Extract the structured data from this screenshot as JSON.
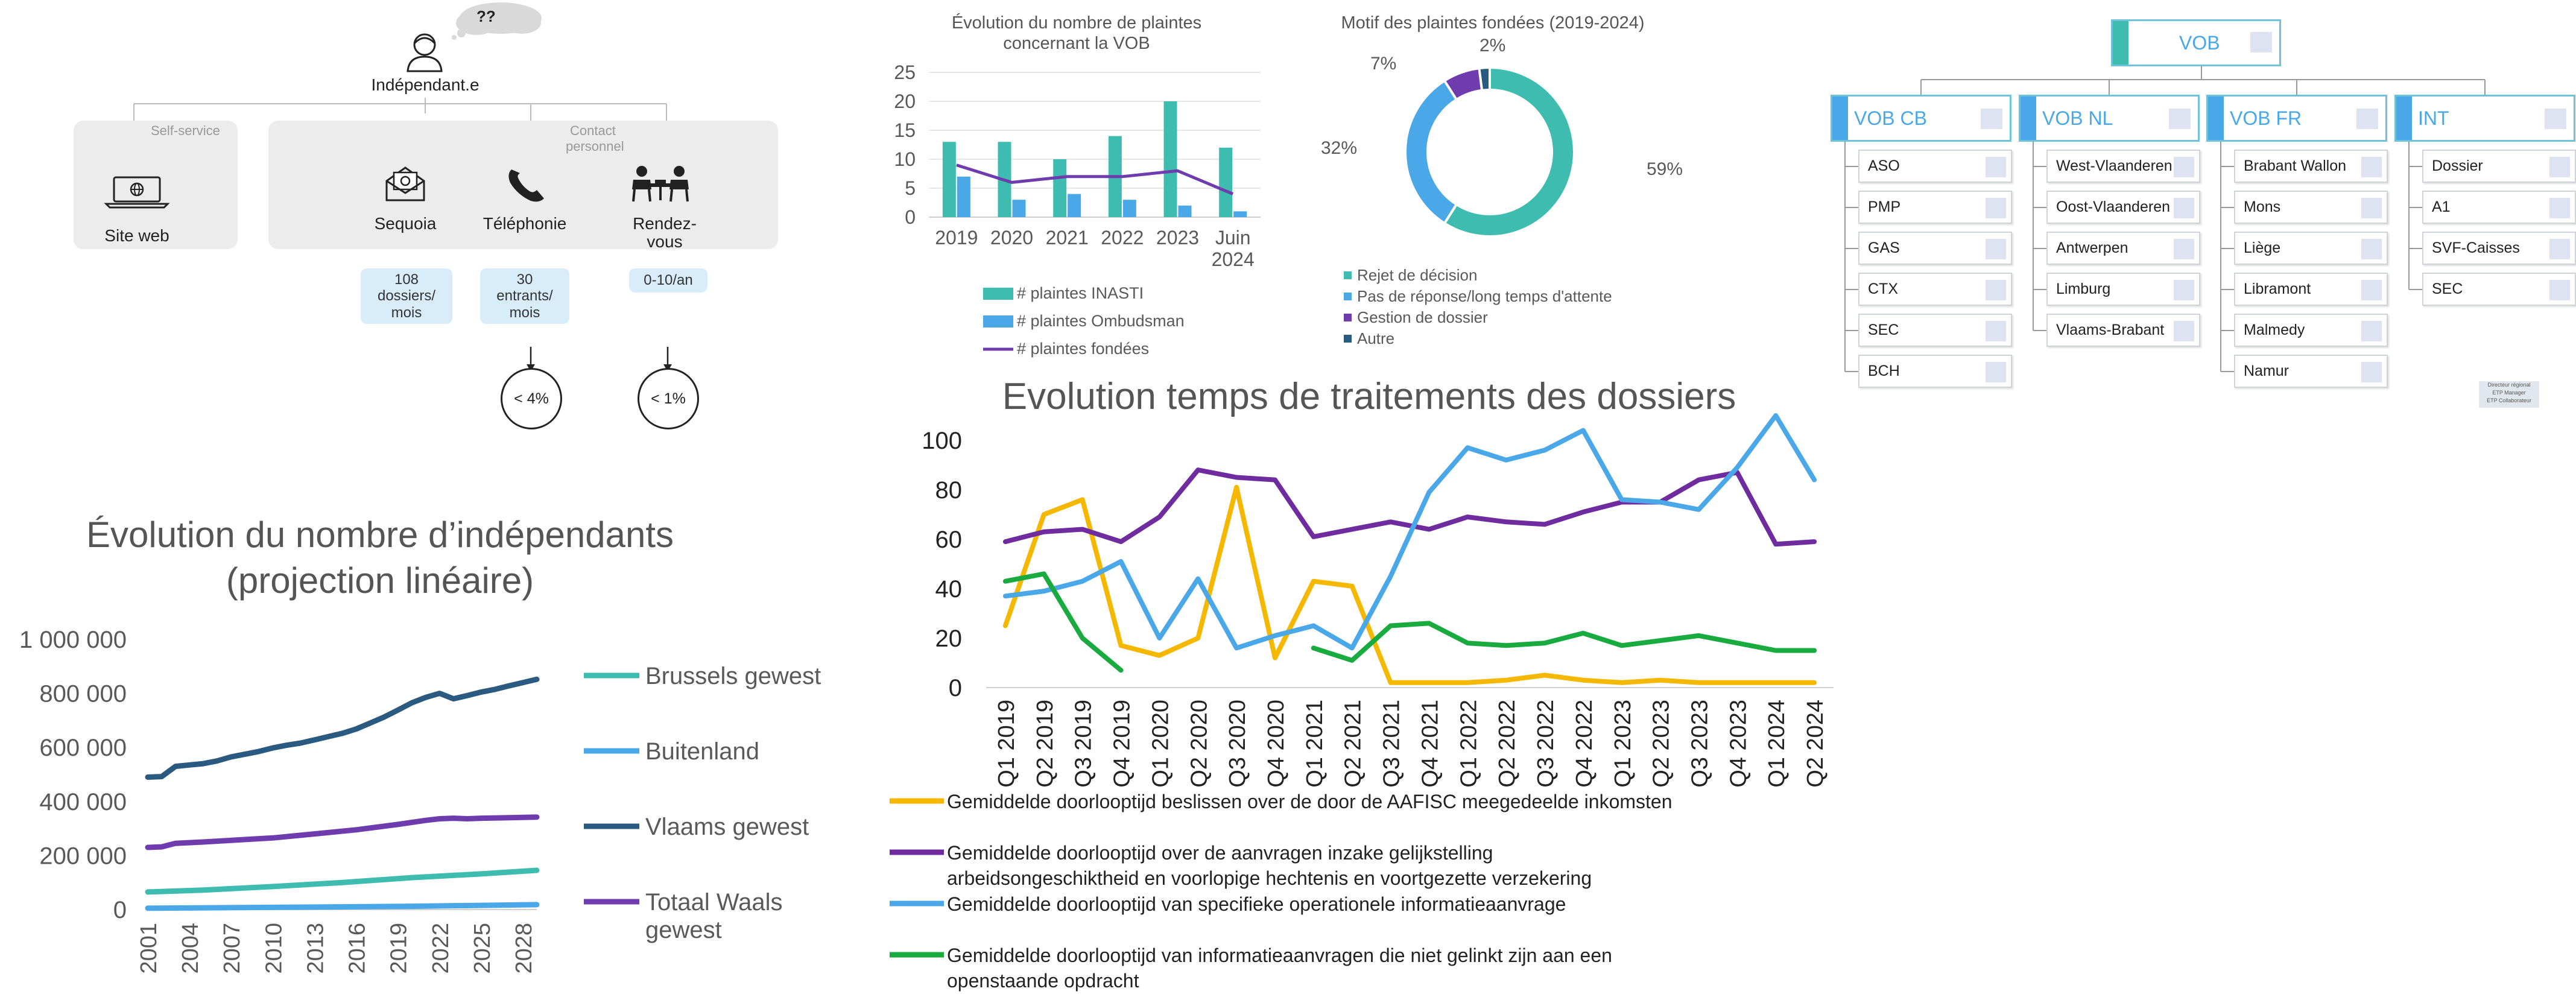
{
  "flow": {
    "bubble": "??",
    "user_label": "Indépendant.e",
    "self_service_label": "Self-service",
    "contact_label_1": "Contact",
    "contact_label_2": "personnel",
    "channels": [
      {
        "label": "Site web",
        "icon": "laptop-icon"
      },
      {
        "label": "Sequoia",
        "icon": "mail-icon"
      },
      {
        "label": "Téléphonie",
        "icon": "phone-icon"
      },
      {
        "label_1": "Rendez-",
        "label_2": "vous",
        "icon": "meeting-icon"
      }
    ],
    "volumes": [
      {
        "l1": "108",
        "l2": "dossiers/",
        "l3": "mois"
      },
      {
        "l1": "30",
        "l2": "entrants/",
        "l3": "mois"
      },
      {
        "l1": "0-10/an"
      }
    ],
    "rates": [
      "< 4%",
      "< 1%"
    ]
  },
  "chart_data": [
    {
      "type": "line",
      "title": "Évolution du nombre d’indépendants",
      "subtitle": "(projection linéaire)",
      "x": [
        "2001",
        "2004",
        "2007",
        "2010",
        "2013",
        "2016",
        "2019",
        "2022",
        "2025",
        "2028"
      ],
      "x_start": 2001,
      "x_end": 2029,
      "ylim": [
        0,
        1000000
      ],
      "yticks": [
        "0",
        "200 000",
        "400 000",
        "600 000",
        "800 000",
        "1 000 000"
      ],
      "series": [
        {
          "name": "Brussels gewest",
          "color": "#3ebcb0",
          "points": [
            [
              2001,
              65000
            ],
            [
              2005,
              72000
            ],
            [
              2010,
              85000
            ],
            [
              2015,
              100000
            ],
            [
              2020,
              118000
            ],
            [
              2025,
              132000
            ],
            [
              2029,
              145000
            ]
          ]
        },
        {
          "name": "Buitenland",
          "color": "#4aa8e8",
          "points": [
            [
              2001,
              5000
            ],
            [
              2010,
              8000
            ],
            [
              2020,
              12000
            ],
            [
              2029,
              18000
            ]
          ]
        },
        {
          "name": "Vlaams gewest",
          "color": "#2a5a80",
          "points": [
            [
              2001,
              490000
            ],
            [
              2002,
              492000
            ],
            [
              2003,
              530000
            ],
            [
              2004,
              535000
            ],
            [
              2005,
              540000
            ],
            [
              2006,
              550000
            ],
            [
              2007,
              565000
            ],
            [
              2008,
              575000
            ],
            [
              2009,
              585000
            ],
            [
              2010,
              598000
            ],
            [
              2011,
              608000
            ],
            [
              2012,
              616000
            ],
            [
              2013,
              628000
            ],
            [
              2014,
              640000
            ],
            [
              2015,
              652000
            ],
            [
              2016,
              668000
            ],
            [
              2017,
              690000
            ],
            [
              2018,
              712000
            ],
            [
              2019,
              738000
            ],
            [
              2020,
              765000
            ],
            [
              2021,
              785000
            ],
            [
              2022,
              800000
            ],
            [
              2023,
              780000
            ],
            [
              2024,
              792000
            ],
            [
              2025,
              805000
            ],
            [
              2026,
              815000
            ],
            [
              2027,
              828000
            ],
            [
              2028,
              840000
            ],
            [
              2029,
              852000
            ]
          ]
        },
        {
          "name_1": "Totaal Waals",
          "name_2": "gewest",
          "color": "#6f3cae",
          "points": [
            [
              2001,
              230000
            ],
            [
              2002,
              232000
            ],
            [
              2003,
              245000
            ],
            [
              2005,
              250000
            ],
            [
              2007,
              256000
            ],
            [
              2010,
              265000
            ],
            [
              2013,
              280000
            ],
            [
              2016,
              295000
            ],
            [
              2019,
              315000
            ],
            [
              2021,
              330000
            ],
            [
              2022,
              336000
            ],
            [
              2023,
              338000
            ],
            [
              2024,
              336000
            ],
            [
              2025,
              338000
            ],
            [
              2027,
              340000
            ],
            [
              2029,
              342000
            ]
          ]
        }
      ]
    },
    {
      "type": "bar",
      "title_1": "Évolution du nombre de plaintes",
      "title_2": "concernant la VOB",
      "categories": [
        "2019",
        "2020",
        "2021",
        "2022",
        "2023",
        "Juin 2024"
      ],
      "ylim": [
        0,
        25
      ],
      "yticks": [
        "0",
        "5",
        "10",
        "15",
        "20",
        "25"
      ],
      "series": [
        {
          "name": "# plaintes INASTI",
          "color": "#3ebcb0",
          "values": [
            13,
            13,
            10,
            14,
            20,
            12
          ]
        },
        {
          "name": "# plaintes Ombudsman",
          "color": "#4aa8e8",
          "values": [
            7,
            3,
            4,
            3,
            2,
            1
          ]
        },
        {
          "name": "# plaintes fondées",
          "color": "#6f3cae",
          "values": [
            9,
            6,
            7,
            7,
            8,
            4
          ]
        }
      ]
    },
    {
      "type": "pie",
      "title": "Motif des plaintes fondées (2019-2024)",
      "slices": [
        {
          "label": "Rejet de décision",
          "value": 59,
          "pct": "59%",
          "color": "#3ebcb0"
        },
        {
          "label": "Pas de réponse/long temps d'attente",
          "value": 32,
          "pct": "32%",
          "color": "#4aa8e8"
        },
        {
          "label": "Gestion de dossier",
          "value": 7,
          "pct": "7%",
          "color": "#6f3cae"
        },
        {
          "label": "Autre",
          "value": 2,
          "pct": "2%",
          "color": "#2a5a80"
        }
      ]
    },
    {
      "type": "line",
      "title": "Evolution temps de traitements des dossiers",
      "categories": [
        "Q1 2019",
        "Q2 2019",
        "Q3 2019",
        "Q4 2019",
        "Q1 2020",
        "Q2 2020",
        "Q3 2020",
        "Q4 2020",
        "Q1 2021",
        "Q2 2021",
        "Q3 2021",
        "Q4 2021",
        "Q1 2022",
        "Q2 2022",
        "Q3 2022",
        "Q4 2022",
        "Q1 2023",
        "Q2 2023",
        "Q3 2023",
        "Q4 2023",
        "Q1 2024",
        "Q2 2024"
      ],
      "ylim": [
        0,
        100
      ],
      "yticks": [
        "0",
        "20",
        "40",
        "60",
        "80",
        "100"
      ],
      "series": [
        {
          "name": "Gemiddelde doorlooptijd beslissen over de door de AAFISC meegedeelde inkomsten",
          "color": "#f5b800",
          "values": [
            25,
            70,
            76,
            17,
            13,
            20,
            81,
            12,
            43,
            41,
            2,
            2,
            2,
            3,
            5,
            3,
            2,
            3,
            2,
            2,
            2,
            2
          ]
        },
        {
          "name_1": "Gemiddelde doorlooptijd over de aanvragen inzake gelijkstelling",
          "name_2": "arbeidsongeschiktheid en voorlopige hechtenis en voortgezette verzekering",
          "color": "#6f2c9e",
          "values": [
            59,
            63,
            64,
            59,
            69,
            88,
            85,
            84,
            61,
            64,
            67,
            64,
            69,
            67,
            66,
            71,
            75,
            75,
            84,
            87,
            58,
            59
          ]
        },
        {
          "name": "Gemiddelde doorlooptijd van specifieke operationele informatieaanvrage",
          "color": "#4aa8e8",
          "values": [
            37,
            39,
            43,
            51,
            20,
            44,
            16,
            21,
            25,
            16,
            45,
            79,
            97,
            92,
            96,
            104,
            76,
            75,
            72,
            89,
            110,
            84
          ]
        },
        {
          "name_1": "Gemiddelde doorlooptijd van informatieaanvragen die niet gelinkt zijn aan een",
          "name_2": "openstaande opdracht",
          "color": "#1aab40",
          "values": [
            43,
            46,
            20,
            7,
            null,
            null,
            null,
            null,
            16,
            11,
            25,
            26,
            18,
            17,
            18,
            22,
            17,
            19,
            21,
            18,
            15,
            15
          ]
        }
      ]
    }
  ],
  "org": {
    "root": "VOB",
    "columns": [
      {
        "head": "VOB CB",
        "items": [
          "ASO",
          "PMP",
          "GAS",
          "CTX",
          "SEC",
          "BCH"
        ]
      },
      {
        "head": "VOB NL",
        "items": [
          "West-Vlaanderen",
          "Oost-Vlaanderen",
          "Antwerpen",
          "Limburg",
          "Vlaams-Brabant"
        ]
      },
      {
        "head": "VOB FR",
        "items": [
          "Brabant Wallon",
          "Mons",
          "Liège",
          "Libramont",
          "Malmedy",
          "Namur"
        ]
      },
      {
        "head": "INT",
        "items": [
          "Dossier",
          "A1",
          "SVF-Caisses",
          "SEC"
        ]
      }
    ],
    "legend_title": "Directeur régional",
    "legend_1": "ETP Manager",
    "legend_2": "ETP Collaborateur"
  }
}
